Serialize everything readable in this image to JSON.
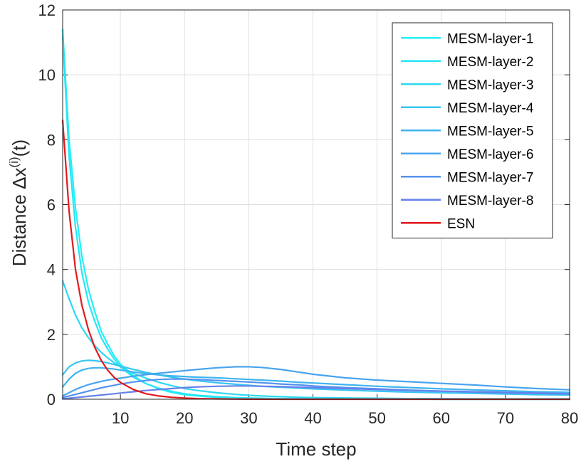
{
  "chart_data": {
    "type": "line",
    "title": "",
    "xlabel": "Time step",
    "ylabel_main": "Distance ",
    "ylabel_symbol": "Δx",
    "ylabel_sup": "(i)",
    "ylabel_tail": "(t)",
    "xlim": [
      1,
      80
    ],
    "ylim": [
      0,
      12
    ],
    "xticks": [
      10,
      20,
      30,
      40,
      50,
      60,
      70,
      80
    ],
    "xtick_labels": [
      "10",
      "20",
      "30",
      "40",
      "50",
      "60",
      "70",
      "80"
    ],
    "yticks": [
      0,
      2,
      4,
      6,
      8,
      10,
      12
    ],
    "ytick_labels": [
      "0",
      "2",
      "4",
      "6",
      "8",
      "10",
      "12"
    ],
    "grid": true,
    "legend_position": "top-right",
    "x": [
      1,
      2,
      3,
      4,
      5,
      6,
      7,
      8,
      9,
      10,
      12,
      14,
      16,
      18,
      20,
      22,
      25,
      28,
      30,
      32,
      35,
      38,
      40,
      45,
      50,
      55,
      60,
      65,
      70,
      75,
      80
    ],
    "series": [
      {
        "name": "MESM-layer-1",
        "color": "#22f0f7",
        "values": [
          11.4,
          8.0,
          5.9,
          4.4,
          3.4,
          2.7,
          2.1,
          1.7,
          1.35,
          1.08,
          0.72,
          0.48,
          0.32,
          0.21,
          0.14,
          0.1,
          0.06,
          0.04,
          0.03,
          0.02,
          0.015,
          0.01,
          0.01,
          0.005,
          0.005,
          0.005,
          0.0,
          0.0,
          0.0,
          0.0,
          0.0
        ]
      },
      {
        "name": "MESM-layer-2",
        "color": "#27e6f5",
        "values": [
          11.2,
          7.5,
          5.3,
          3.9,
          3.0,
          2.4,
          1.9,
          1.55,
          1.25,
          1.0,
          0.68,
          0.48,
          0.34,
          0.24,
          0.17,
          0.12,
          0.08,
          0.05,
          0.04,
          0.03,
          0.02,
          0.015,
          0.01,
          0.01,
          0.005,
          0.005,
          0.0,
          0.0,
          0.0,
          0.0,
          0.0
        ]
      },
      {
        "name": "MESM-layer-3",
        "color": "#2ed8f3",
        "values": [
          3.65,
          3.1,
          2.6,
          2.2,
          1.9,
          1.65,
          1.45,
          1.28,
          1.13,
          1.0,
          0.8,
          0.65,
          0.52,
          0.42,
          0.33,
          0.27,
          0.2,
          0.15,
          0.12,
          0.1,
          0.08,
          0.06,
          0.05,
          0.04,
          0.03,
          0.02,
          0.02,
          0.015,
          0.01,
          0.01,
          0.01
        ]
      },
      {
        "name": "MESM-layer-4",
        "color": "#36c6f0",
        "values": [
          0.75,
          1.0,
          1.12,
          1.18,
          1.2,
          1.19,
          1.16,
          1.12,
          1.07,
          1.02,
          0.92,
          0.83,
          0.75,
          0.68,
          0.62,
          0.57,
          0.51,
          0.46,
          0.43,
          0.4,
          0.37,
          0.34,
          0.32,
          0.28,
          0.25,
          0.22,
          0.2,
          0.18,
          0.16,
          0.14,
          0.13
        ]
      },
      {
        "name": "MESM-layer-5",
        "color": "#3eb4ee",
        "values": [
          0.38,
          0.62,
          0.8,
          0.9,
          0.95,
          0.97,
          0.97,
          0.95,
          0.93,
          0.9,
          0.84,
          0.79,
          0.75,
          0.72,
          0.7,
          0.68,
          0.66,
          0.63,
          0.61,
          0.59,
          0.56,
          0.52,
          0.5,
          0.45,
          0.4,
          0.36,
          0.32,
          0.29,
          0.26,
          0.23,
          0.21
        ]
      },
      {
        "name": "MESM-layer-6",
        "color": "#49a4ee",
        "values": [
          0.1,
          0.2,
          0.3,
          0.38,
          0.45,
          0.5,
          0.55,
          0.59,
          0.62,
          0.65,
          0.71,
          0.76,
          0.8,
          0.84,
          0.88,
          0.92,
          0.97,
          1.0,
          1.0,
          0.98,
          0.92,
          0.83,
          0.77,
          0.66,
          0.59,
          0.54,
          0.49,
          0.44,
          0.38,
          0.33,
          0.29
        ]
      },
      {
        "name": "MESM-layer-7",
        "color": "#5592ee",
        "values": [
          0.05,
          0.1,
          0.15,
          0.2,
          0.25,
          0.3,
          0.35,
          0.39,
          0.43,
          0.47,
          0.53,
          0.58,
          0.61,
          0.62,
          0.62,
          0.61,
          0.58,
          0.55,
          0.53,
          0.51,
          0.47,
          0.44,
          0.41,
          0.36,
          0.32,
          0.28,
          0.25,
          0.22,
          0.2,
          0.18,
          0.16
        ]
      },
      {
        "name": "MESM-layer-8",
        "color": "#6680ec",
        "values": [
          0.01,
          0.03,
          0.05,
          0.07,
          0.09,
          0.11,
          0.13,
          0.15,
          0.17,
          0.19,
          0.23,
          0.27,
          0.3,
          0.33,
          0.36,
          0.38,
          0.4,
          0.41,
          0.41,
          0.4,
          0.39,
          0.37,
          0.36,
          0.33,
          0.3,
          0.27,
          0.25,
          0.23,
          0.21,
          0.19,
          0.17
        ]
      },
      {
        "name": "ESN",
        "color": "#e31a1c",
        "values": [
          8.6,
          5.8,
          4.0,
          2.9,
          2.15,
          1.6,
          1.2,
          0.9,
          0.68,
          0.52,
          0.3,
          0.17,
          0.1,
          0.06,
          0.035,
          0.02,
          0.01,
          0.005,
          0.003,
          0.002,
          0.001,
          0.0,
          0.0,
          0.0,
          0.0,
          0.0,
          0.0,
          0.0,
          0.0,
          0.0,
          0.0
        ]
      }
    ]
  }
}
